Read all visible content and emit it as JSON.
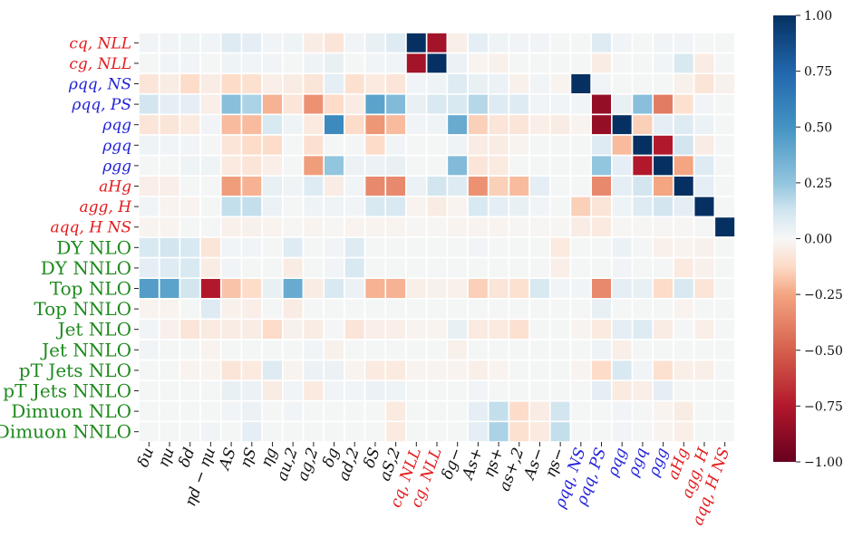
{
  "chart_data": {
    "type": "heatmap",
    "title": "",
    "xlabel": "",
    "ylabel": "",
    "row_labels": [
      {
        "text": "cq, NLL",
        "color": "#e31a1c"
      },
      {
        "text": "cg, NLL",
        "color": "#e31a1c"
      },
      {
        "text": "ρqq, NS",
        "color": "#1f1fd8"
      },
      {
        "text": "ρqq, PS",
        "color": "#1f1fd8"
      },
      {
        "text": "ρqg",
        "color": "#1f1fd8"
      },
      {
        "text": "ρgq",
        "color": "#1f1fd8"
      },
      {
        "text": "ρgg",
        "color": "#1f1fd8"
      },
      {
        "text": "aHg",
        "color": "#e31a1c"
      },
      {
        "text": "agg, H",
        "color": "#e31a1c"
      },
      {
        "text": "aqq, H NS",
        "color": "#e31a1c"
      },
      {
        "text": "DY NLO",
        "color": "#1e8a1e"
      },
      {
        "text": "DY NNLO",
        "color": "#1e8a1e"
      },
      {
        "text": "Top NLO",
        "color": "#1e8a1e"
      },
      {
        "text": "Top NNLO",
        "color": "#1e8a1e"
      },
      {
        "text": "Jet NLO",
        "color": "#1e8a1e"
      },
      {
        "text": "Jet NNLO",
        "color": "#1e8a1e"
      },
      {
        "text": "pT Jets NLO",
        "color": "#1e8a1e"
      },
      {
        "text": "pT Jets NNLO",
        "color": "#1e8a1e"
      },
      {
        "text": "Dimuon NLO",
        "color": "#1e8a1e"
      },
      {
        "text": "Dimuon NNLO",
        "color": "#1e8a1e"
      }
    ],
    "col_labels": [
      {
        "text": "δu",
        "color": "#111111"
      },
      {
        "text": "ηu",
        "color": "#111111"
      },
      {
        "text": "δd",
        "color": "#111111"
      },
      {
        "text": "ηd − ηu",
        "color": "#111111"
      },
      {
        "text": "AS",
        "color": "#111111"
      },
      {
        "text": "ηS",
        "color": "#111111"
      },
      {
        "text": "ηg",
        "color": "#111111"
      },
      {
        "text": "au,2",
        "color": "#111111"
      },
      {
        "text": "ag,2",
        "color": "#111111"
      },
      {
        "text": "δg",
        "color": "#111111"
      },
      {
        "text": "ad,2",
        "color": "#111111"
      },
      {
        "text": "δS",
        "color": "#111111"
      },
      {
        "text": "aS,2",
        "color": "#111111"
      },
      {
        "text": "cq, NLL",
        "color": "#e31a1c"
      },
      {
        "text": "cg, NLL",
        "color": "#e31a1c"
      },
      {
        "text": "δg−",
        "color": "#111111"
      },
      {
        "text": "As+",
        "color": "#111111"
      },
      {
        "text": "ηs+",
        "color": "#111111"
      },
      {
        "text": "as+,2",
        "color": "#111111"
      },
      {
        "text": "As−",
        "color": "#111111"
      },
      {
        "text": "ηs−",
        "color": "#111111"
      },
      {
        "text": "ρqq, NS",
        "color": "#1f1fd8"
      },
      {
        "text": "ρqq, PS",
        "color": "#1f1fd8"
      },
      {
        "text": "ρqg",
        "color": "#1f1fd8"
      },
      {
        "text": "ρgq",
        "color": "#1f1fd8"
      },
      {
        "text": "ρgg",
        "color": "#1f1fd8"
      },
      {
        "text": "aHg",
        "color": "#e31a1c"
      },
      {
        "text": "agg, H",
        "color": "#e31a1c"
      },
      {
        "text": "aqq, H NS",
        "color": "#e31a1c"
      }
    ],
    "values": [
      [
        0.02,
        0.02,
        0.03,
        0.02,
        0.08,
        0.06,
        0.02,
        0.03,
        -0.05,
        -0.08,
        0.02,
        0.05,
        0.08,
        1.0,
        -0.8,
        -0.04,
        0.06,
        0.03,
        0.02,
        0.02,
        0.01,
        0.01,
        0.08,
        0.02,
        0.01,
        0.02,
        0.02,
        0.01,
        0.01
      ],
      [
        0.01,
        0.02,
        0.02,
        0.01,
        0.03,
        0.02,
        0.02,
        0.01,
        0.03,
        0.05,
        0.01,
        0.02,
        0.02,
        -0.8,
        1.0,
        0.04,
        -0.02,
        -0.03,
        0.01,
        0.01,
        0.01,
        0.01,
        -0.05,
        0.01,
        0.01,
        0.02,
        0.1,
        -0.05,
        0.01
      ],
      [
        -0.08,
        -0.05,
        -0.12,
        -0.05,
        -0.12,
        -0.1,
        -0.04,
        -0.05,
        -0.08,
        0.06,
        -0.1,
        -0.06,
        -0.08,
        0.02,
        0.03,
        0.08,
        0.05,
        0.04,
        -0.03,
        0.02,
        -0.02,
        1.0,
        0.02,
        0.01,
        0.01,
        0.01,
        -0.03,
        -0.08,
        -0.03
      ],
      [
        0.12,
        0.06,
        0.06,
        -0.04,
        0.28,
        0.2,
        -0.22,
        -0.08,
        -0.32,
        -0.12,
        -0.05,
        0.42,
        0.3,
        0.05,
        0.1,
        0.1,
        0.18,
        0.08,
        0.08,
        0.02,
        0.02,
        0.02,
        -0.85,
        0.05,
        0.28,
        -0.4,
        -0.1,
        0.02,
        0.01
      ],
      [
        -0.08,
        -0.08,
        -0.06,
        0.02,
        -0.2,
        -0.2,
        0.1,
        0.03,
        -0.06,
        0.55,
        -0.12,
        -0.3,
        -0.2,
        0.02,
        0.03,
        0.38,
        -0.15,
        -0.08,
        -0.08,
        -0.04,
        -0.05,
        -0.02,
        -0.85,
        1.0,
        -0.15,
        0.06,
        0.08,
        0.04,
        0.01
      ],
      [
        0.03,
        0.02,
        0.02,
        0.01,
        -0.08,
        -0.12,
        -0.12,
        0.01,
        -0.1,
        0.01,
        0.01,
        -0.12,
        0.02,
        0.01,
        0.01,
        0.03,
        -0.05,
        -0.05,
        -0.02,
        0.01,
        0.01,
        0.01,
        0.08,
        -0.2,
        1.0,
        -0.75,
        0.12,
        -0.05,
        0.01
      ],
      [
        0.01,
        0.01,
        0.03,
        0.03,
        -0.06,
        -0.08,
        -0.04,
        0.01,
        -0.28,
        0.25,
        0.04,
        0.04,
        0.05,
        0.01,
        0.01,
        0.3,
        -0.08,
        -0.06,
        0.01,
        0.01,
        0.01,
        0.01,
        0.25,
        0.06,
        -0.75,
        1.0,
        -0.25,
        0.08,
        0.01
      ],
      [
        -0.04,
        -0.04,
        0.01,
        0.01,
        -0.28,
        -0.22,
        0.05,
        0.03,
        0.08,
        -0.05,
        0.02,
        -0.35,
        -0.35,
        0.04,
        0.12,
        0.08,
        -0.32,
        -0.15,
        -0.2,
        0.06,
        0.01,
        0.01,
        -0.35,
        0.06,
        0.12,
        -0.25,
        1.0,
        0.06,
        0.01
      ],
      [
        0.02,
        -0.02,
        -0.02,
        0.01,
        0.15,
        0.15,
        0.04,
        0.01,
        0.03,
        0.03,
        0.02,
        0.1,
        0.1,
        -0.02,
        -0.05,
        -0.02,
        0.1,
        0.06,
        0.05,
        0.02,
        0.01,
        -0.15,
        -0.08,
        0.03,
        0.08,
        0.12,
        0.06,
        1.0,
        0.01
      ],
      [
        -0.02,
        -0.02,
        0.01,
        0.01,
        -0.03,
        -0.03,
        -0.02,
        -0.01,
        -0.02,
        -0.01,
        -0.02,
        -0.02,
        -0.02,
        -0.01,
        -0.01,
        -0.02,
        -0.02,
        -0.02,
        -0.01,
        -0.01,
        -0.01,
        -0.05,
        -0.06,
        -0.01,
        -0.01,
        -0.01,
        -0.01,
        0.01,
        1.0
      ],
      [
        0.1,
        0.12,
        0.1,
        -0.08,
        0.02,
        0.02,
        0.01,
        0.08,
        0.01,
        0.02,
        0.08,
        0.01,
        0.01,
        0.01,
        0.01,
        0.01,
        0.02,
        0.01,
        0.01,
        0.01,
        -0.06,
        0.01,
        0.01,
        0.04,
        0.01,
        -0.03,
        -0.02,
        -0.03,
        0.01
      ],
      [
        0.06,
        0.08,
        0.1,
        -0.05,
        0.02,
        0.01,
        0.01,
        -0.05,
        0.01,
        0.02,
        0.1,
        0.01,
        0.01,
        0.01,
        0.01,
        0.01,
        0.01,
        0.01,
        0.01,
        0.01,
        -0.04,
        0.01,
        0.01,
        0.02,
        0.01,
        0.01,
        -0.06,
        -0.03,
        0.01
      ],
      [
        0.45,
        0.42,
        0.12,
        -0.75,
        -0.18,
        -0.12,
        0.05,
        0.38,
        -0.05,
        0.1,
        0.04,
        -0.22,
        -0.22,
        -0.04,
        -0.03,
        -0.03,
        -0.15,
        -0.08,
        -0.1,
        0.1,
        0.02,
        0.02,
        -0.35,
        0.06,
        0.05,
        -0.12,
        0.1,
        -0.08,
        0.01
      ],
      [
        -0.02,
        -0.02,
        0.01,
        0.08,
        -0.03,
        -0.04,
        0.01,
        -0.05,
        0.01,
        0.01,
        0.01,
        0.01,
        0.01,
        0.01,
        0.01,
        0.01,
        0.01,
        0.01,
        0.01,
        0.01,
        0.01,
        0.01,
        0.05,
        0.01,
        0.01,
        0.01,
        -0.02,
        0.01,
        0.01
      ],
      [
        0.02,
        -0.03,
        -0.08,
        -0.06,
        -0.05,
        -0.05,
        -0.12,
        -0.03,
        -0.05,
        0.01,
        -0.08,
        -0.04,
        -0.04,
        -0.02,
        -0.02,
        0.05,
        -0.06,
        -0.06,
        -0.1,
        0.01,
        0.01,
        -0.02,
        -0.06,
        0.06,
        0.08,
        -0.05,
        0.01,
        -0.04,
        0.01
      ],
      [
        0.02,
        0.01,
        0.01,
        -0.02,
        0.01,
        0.01,
        0.01,
        0.01,
        0.02,
        -0.03,
        0.01,
        0.01,
        0.01,
        0.01,
        0.01,
        -0.03,
        0.01,
        0.01,
        0.01,
        0.01,
        0.01,
        0.01,
        0.03,
        -0.04,
        0.01,
        0.01,
        0.01,
        0.01,
        0.01
      ],
      [
        0.01,
        0.01,
        -0.02,
        -0.02,
        -0.08,
        -0.06,
        0.08,
        -0.02,
        0.04,
        0.04,
        -0.02,
        -0.06,
        -0.06,
        -0.02,
        -0.02,
        -0.02,
        -0.04,
        -0.02,
        0.01,
        0.01,
        0.01,
        -0.02,
        -0.12,
        0.1,
        0.02,
        -0.1,
        -0.04,
        -0.04,
        0.01
      ],
      [
        0.01,
        0.01,
        0.01,
        0.01,
        0.05,
        0.04,
        -0.05,
        0.02,
        -0.06,
        0.02,
        0.02,
        0.04,
        0.03,
        0.01,
        0.01,
        0.01,
        0.02,
        0.01,
        0.01,
        0.01,
        0.01,
        0.01,
        0.06,
        -0.06,
        -0.04,
        0.06,
        0.01,
        0.01,
        0.01
      ],
      [
        0.01,
        0.01,
        0.01,
        0.01,
        0.02,
        0.04,
        0.01,
        0.02,
        0.01,
        0.01,
        0.01,
        0.01,
        -0.06,
        0.01,
        0.01,
        0.01,
        0.06,
        0.15,
        -0.12,
        -0.05,
        0.12,
        0.01,
        0.01,
        0.02,
        0.01,
        -0.02,
        -0.05,
        0.01,
        0.01
      ],
      [
        0.01,
        0.01,
        0.01,
        0.02,
        0.01,
        0.06,
        0.01,
        0.01,
        0.01,
        0.01,
        0.01,
        0.01,
        -0.06,
        0.01,
        0.01,
        0.01,
        0.06,
        0.2,
        -0.1,
        -0.06,
        0.15,
        0.01,
        0.01,
        0.02,
        0.01,
        -0.02,
        -0.04,
        0.01,
        0.01
      ]
    ],
    "colorbar": {
      "vmin": -1.0,
      "vmax": 1.0,
      "colormap": "RdBu",
      "ticks": [
        "1.00",
        "0.75",
        "0.50",
        "0.25",
        "0.00",
        "−0.25",
        "−0.50",
        "−0.75",
        "−1.00"
      ],
      "tick_values": [
        1.0,
        0.75,
        0.5,
        0.25,
        0.0,
        -0.25,
        -0.5,
        -0.75,
        -1.0
      ]
    },
    "grid": true
  }
}
